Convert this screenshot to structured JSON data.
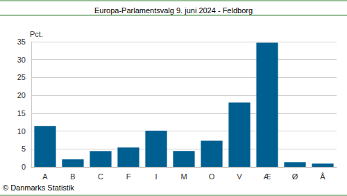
{
  "chart_data": {
    "type": "bar",
    "title": "Europa-Parlamentsvalg 9. juni 2024 - Feldborg",
    "y_label": "Pct.",
    "source": "© Danmarks Statistik",
    "categories": [
      "A",
      "B",
      "C",
      "F",
      "I",
      "M",
      "O",
      "V",
      "Æ",
      "Ø",
      "Å"
    ],
    "values": [
      11.4,
      2.1,
      4.4,
      5.4,
      10.1,
      4.4,
      7.3,
      18.0,
      34.7,
      1.3,
      0.9
    ],
    "color": "#005f91",
    "ylim": [
      0,
      35
    ],
    "yticks": [
      0,
      5,
      10,
      15,
      20,
      25,
      30,
      35
    ],
    "grid": true
  }
}
